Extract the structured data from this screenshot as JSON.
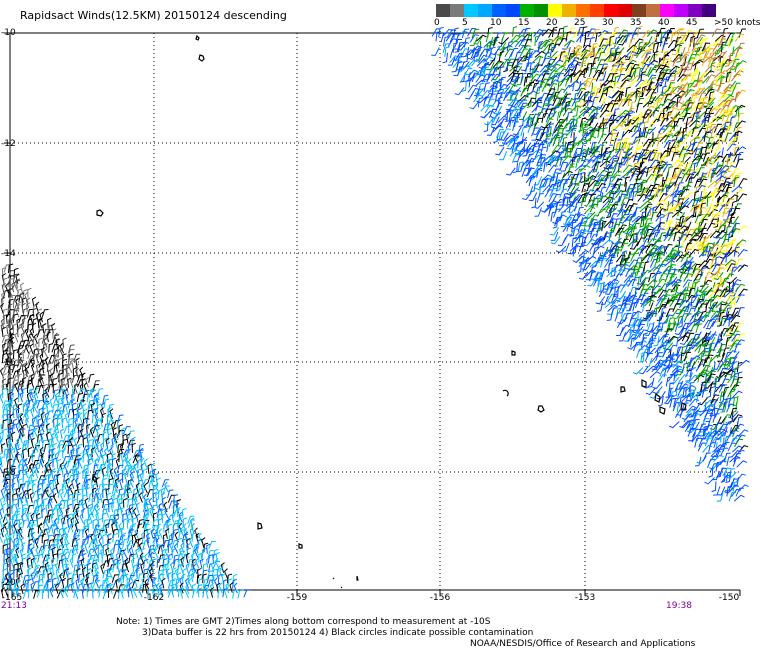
{
  "title": "Rapidsact Winds(12.5KM) 20150124 descending",
  "scale": {
    "colors": [
      "#4a4a4a",
      "#7a7a7a",
      "#00c8ff",
      "#00a8ff",
      "#0060ff",
      "#0048ff",
      "#00b000",
      "#009000",
      "#ffff00",
      "#f0b000",
      "#ff7000",
      "#ff4000",
      "#ff0000",
      "#e00000",
      "#804020",
      "#c07040",
      "#ff00ff",
      "#c000ff",
      "#8000c0",
      "#400080"
    ],
    "labels": [
      "0",
      "5",
      "10",
      "15",
      "20",
      "25",
      "30",
      "35",
      "40",
      "45",
      ">50 knots"
    ]
  },
  "axes": {
    "lat_labels": [
      "-10",
      "-12",
      "-14",
      "-16",
      "-18",
      "-20"
    ],
    "lon_labels": [
      "-165",
      "-162",
      "-159",
      "-156",
      "-153",
      "-150"
    ]
  },
  "times": {
    "left": "21:13",
    "right": "19:38"
  },
  "notes": [
    "Note: 1) Times are GMT 2)Times along bottom correspond to measurement at -10S",
    "3)Data buffer is 22 hrs from 20150124 4) Black circles indicate possible contamination",
    "NOAA/NESDIS/Office of Research and Applications"
  ]
}
